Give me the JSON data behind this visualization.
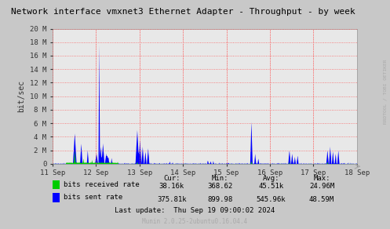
{
  "title": "Network interface vmxnet3 Ethernet Adapter - Throughput - by week",
  "ylabel": "bit/sec",
  "right_label": "RRDTOOL / TOBI OETIKER",
  "background_color": "#c8c8c8",
  "plot_bg_color": "#e8e8e8",
  "grid_color": "#ff4444",
  "legend_received": "bits received rate",
  "legend_sent": "bits sent rate",
  "received_color": "#00cc00",
  "sent_color": "#0000ff",
  "ylim": [
    0,
    20000000
  ],
  "yticks": [
    0,
    2000000,
    4000000,
    6000000,
    8000000,
    10000000,
    12000000,
    14000000,
    16000000,
    18000000,
    20000000
  ],
  "ytick_labels": [
    "0",
    "2 M",
    "4 M",
    "6 M",
    "8 M",
    "10 M",
    "12 M",
    "14 M",
    "16 M",
    "18 M",
    "20 M"
  ],
  "xstart": 0,
  "xend": 7,
  "xtick_positions": [
    0,
    1,
    2,
    3,
    4,
    5,
    6,
    7
  ],
  "xtick_labels": [
    "11 Sep",
    "12 Sep",
    "13 Sep",
    "14 Sep",
    "15 Sep",
    "16 Sep",
    "17 Sep",
    "18 Sep"
  ],
  "cur_received": "38.16k",
  "cur_sent": "375.81k",
  "min_received": "368.62",
  "min_sent": "899.98",
  "avg_received": "45.51k",
  "avg_sent": "545.96k",
  "max_received": "24.96M",
  "max_sent": "48.59M",
  "last_update": "Last update:  Thu Sep 19 09:00:02 2024",
  "munin_version": "Munin 2.0.25-2ubuntu0.16.04.4"
}
